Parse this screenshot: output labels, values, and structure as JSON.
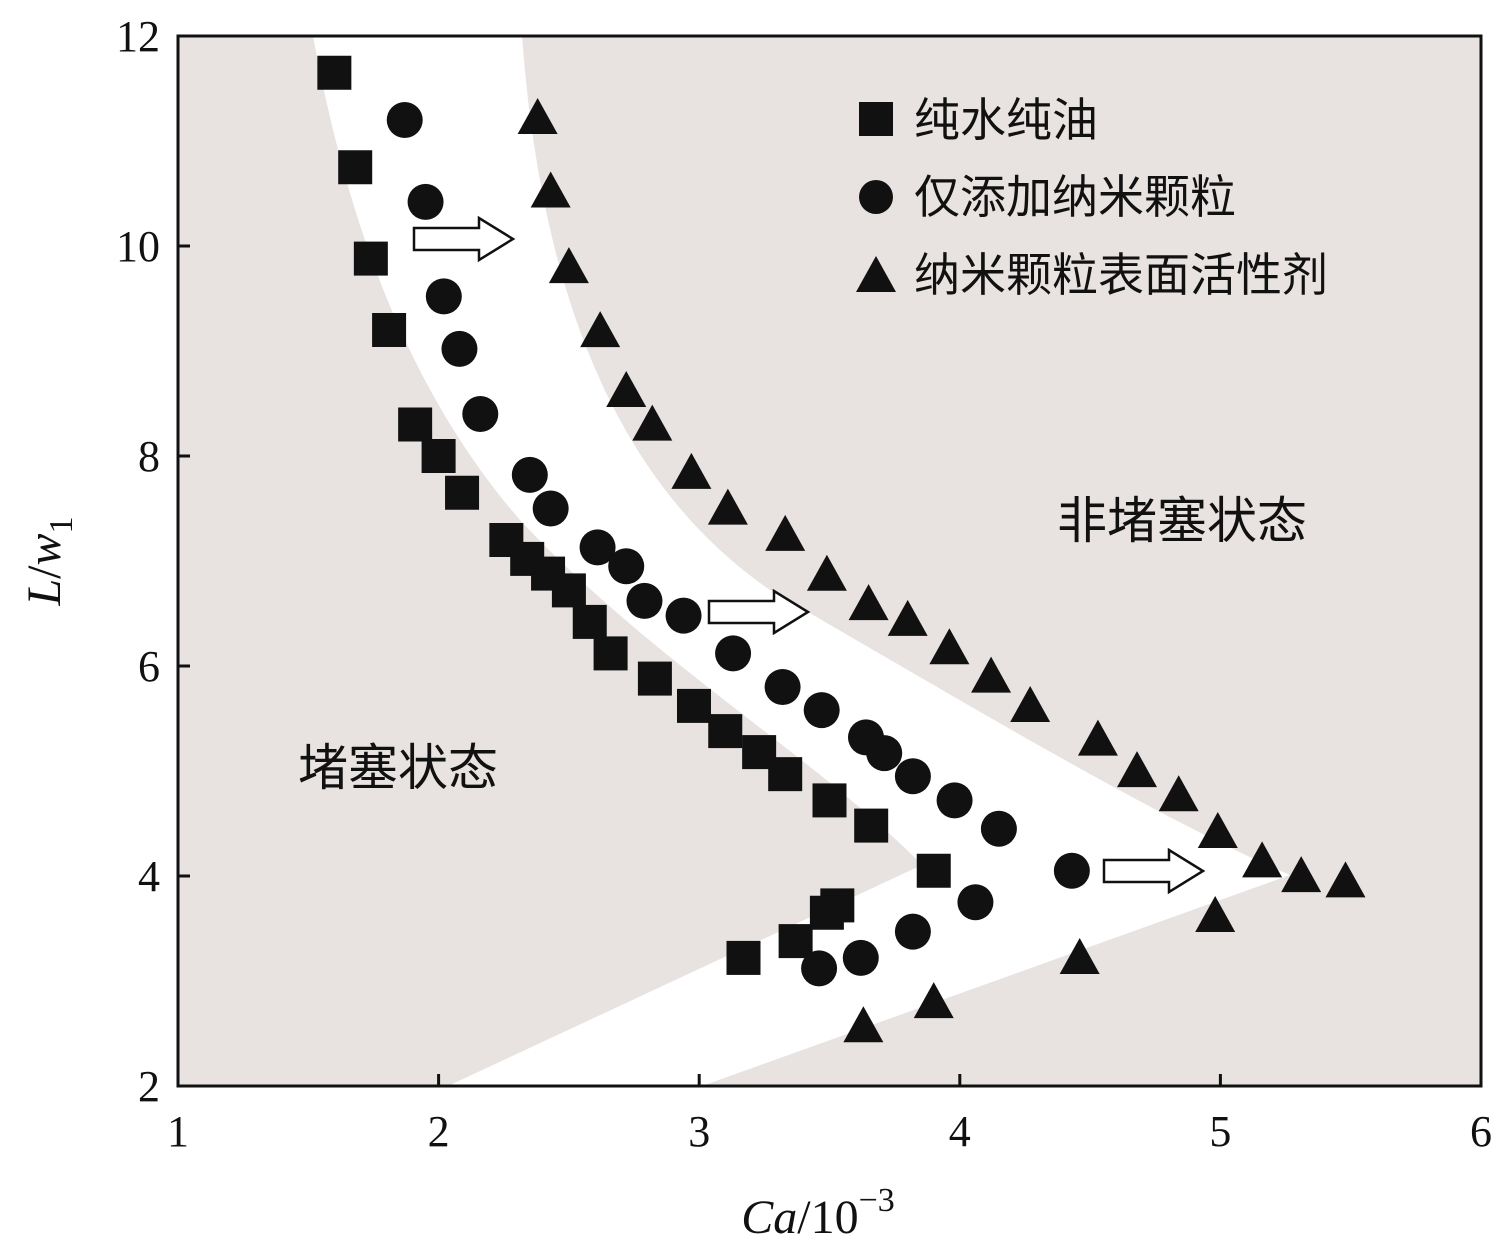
{
  "chart_data": {
    "type": "scatter",
    "xlabel": {
      "main": "Ca",
      "sep": "/10",
      "sup": "−3"
    },
    "ylabel": {
      "main": "L",
      "sep": "/",
      "var": "w",
      "sub": "1"
    },
    "xlim": [
      1,
      6
    ],
    "ylim": [
      2,
      12
    ],
    "xticks": [
      "1",
      "2",
      "3",
      "4",
      "5",
      "6"
    ],
    "yticks": [
      "2",
      "4",
      "6",
      "8",
      "10",
      "12"
    ],
    "grid": false,
    "legend_position": "top-right",
    "colors": {
      "background_region": "#e8e3e0",
      "marker": "#111111",
      "axis": "#111111"
    },
    "regions": [
      {
        "name": "非堵塞状态",
        "label": "非堵塞状态"
      },
      {
        "name": "堵塞状态",
        "label": "堵塞状态"
      }
    ],
    "series": [
      {
        "name": "纯水纯油",
        "marker": "square",
        "points": [
          [
            1.6,
            11.65
          ],
          [
            1.68,
            10.75
          ],
          [
            1.74,
            9.88
          ],
          [
            1.81,
            9.2
          ],
          [
            1.91,
            8.3
          ],
          [
            2.0,
            8.0
          ],
          [
            2.09,
            7.65
          ],
          [
            2.26,
            7.2
          ],
          [
            2.34,
            7.02
          ],
          [
            2.42,
            6.88
          ],
          [
            2.5,
            6.72
          ],
          [
            2.58,
            6.42
          ],
          [
            2.66,
            6.12
          ],
          [
            2.83,
            5.88
          ],
          [
            2.98,
            5.62
          ],
          [
            3.1,
            5.38
          ],
          [
            3.23,
            5.18
          ],
          [
            3.33,
            4.97
          ],
          [
            3.5,
            4.72
          ],
          [
            3.66,
            4.48
          ],
          [
            3.9,
            4.05
          ],
          [
            3.53,
            3.72
          ],
          [
            3.49,
            3.65
          ],
          [
            3.37,
            3.38
          ],
          [
            3.17,
            3.22
          ]
        ]
      },
      {
        "name": "仅添加纳米颗粒",
        "marker": "circle",
        "points": [
          [
            1.87,
            11.2
          ],
          [
            1.95,
            10.42
          ],
          [
            2.02,
            9.52
          ],
          [
            2.08,
            9.02
          ],
          [
            2.16,
            8.4
          ],
          [
            2.35,
            7.82
          ],
          [
            2.43,
            7.5
          ],
          [
            2.61,
            7.13
          ],
          [
            2.72,
            6.95
          ],
          [
            2.79,
            6.62
          ],
          [
            2.94,
            6.48
          ],
          [
            3.13,
            6.12
          ],
          [
            3.32,
            5.8
          ],
          [
            3.47,
            5.58
          ],
          [
            3.64,
            5.32
          ],
          [
            3.71,
            5.17
          ],
          [
            3.82,
            4.95
          ],
          [
            3.98,
            4.72
          ],
          [
            4.15,
            4.45
          ],
          [
            4.43,
            4.05
          ],
          [
            4.06,
            3.75
          ],
          [
            3.82,
            3.47
          ],
          [
            3.62,
            3.22
          ],
          [
            3.46,
            3.12
          ]
        ]
      },
      {
        "name": "纳米颗粒表面活性剂",
        "marker": "triangle",
        "points": [
          [
            2.38,
            11.2
          ],
          [
            2.43,
            10.5
          ],
          [
            2.5,
            9.78
          ],
          [
            2.62,
            9.17
          ],
          [
            2.72,
            8.6
          ],
          [
            2.82,
            8.28
          ],
          [
            2.97,
            7.82
          ],
          [
            3.11,
            7.48
          ],
          [
            3.33,
            7.23
          ],
          [
            3.49,
            6.85
          ],
          [
            3.65,
            6.57
          ],
          [
            3.8,
            6.42
          ],
          [
            3.96,
            6.15
          ],
          [
            4.12,
            5.88
          ],
          [
            4.27,
            5.6
          ],
          [
            4.53,
            5.28
          ],
          [
            4.68,
            4.98
          ],
          [
            4.84,
            4.75
          ],
          [
            4.99,
            4.4
          ],
          [
            5.16,
            4.12
          ],
          [
            5.31,
            3.98
          ],
          [
            5.48,
            3.93
          ],
          [
            4.98,
            3.6
          ],
          [
            4.46,
            3.2
          ],
          [
            3.9,
            2.78
          ],
          [
            3.63,
            2.55
          ]
        ]
      }
    ]
  }
}
